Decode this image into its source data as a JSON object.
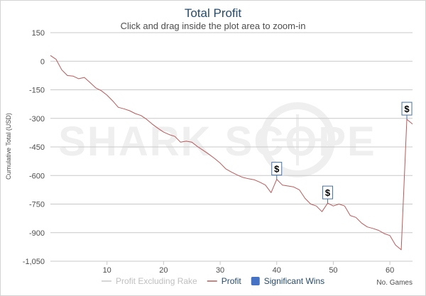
{
  "chart_data": {
    "type": "line",
    "title": "Total Profit",
    "subtitle": "Click and drag inside the plot area to zoom-in",
    "xlabel": "No. Games",
    "ylabel": "Cumulative Total (USD)",
    "watermark": "SHARK SCOPE",
    "xlim": [
      0,
      64
    ],
    "ylim": [
      -1050,
      150
    ],
    "xticks": [
      10,
      20,
      30,
      40,
      50,
      60
    ],
    "yticks": [
      150,
      0,
      -150,
      -300,
      -450,
      -600,
      -750,
      -900,
      -1050
    ],
    "ytick_labels": [
      "150",
      "0",
      "-150",
      "-300",
      "-450",
      "-600",
      "-750",
      "-900",
      "-1,050"
    ],
    "series": [
      {
        "name": "Profit",
        "color": "#b85a5a",
        "x": [
          0,
          1,
          2,
          3,
          4,
          5,
          6,
          7,
          8,
          9,
          10,
          11,
          12,
          13,
          14,
          15,
          16,
          17,
          18,
          19,
          20,
          21,
          22,
          23,
          24,
          25,
          26,
          27,
          28,
          29,
          30,
          31,
          32,
          33,
          34,
          35,
          36,
          37,
          38,
          39,
          40,
          41,
          42,
          43,
          44,
          45,
          46,
          47,
          48,
          49,
          50,
          51,
          52,
          53,
          54,
          55,
          56,
          57,
          58,
          59,
          60,
          61,
          62,
          63,
          64
        ],
        "y": [
          30,
          10,
          -45,
          -75,
          -78,
          -92,
          -85,
          -112,
          -140,
          -155,
          -178,
          -208,
          -242,
          -250,
          -260,
          -275,
          -285,
          -305,
          -330,
          -352,
          -372,
          -385,
          -395,
          -425,
          -420,
          -425,
          -448,
          -468,
          -488,
          -510,
          -535,
          -565,
          -582,
          -597,
          -610,
          -617,
          -622,
          -635,
          -650,
          -690,
          -620,
          -650,
          -655,
          -660,
          -675,
          -720,
          -750,
          -760,
          -790,
          -745,
          -760,
          -750,
          -760,
          -810,
          -820,
          -850,
          -870,
          -878,
          -888,
          -905,
          -915,
          -965,
          -990,
          -305,
          -330
        ]
      }
    ],
    "significant_wins": [
      {
        "x": 40,
        "y": -620,
        "label": "$"
      },
      {
        "x": 49,
        "y": -745,
        "label": "$"
      },
      {
        "x": 63,
        "y": -305,
        "label": "$"
      }
    ],
    "legend": {
      "position": "bottom-center",
      "items": [
        {
          "name": "Profit Excluding Rake",
          "color": "#c8c8c8",
          "text_color": "#c0c0c0",
          "marker": "line"
        },
        {
          "name": "Profit",
          "color": "#b85a5a",
          "text_color": "#274b6d",
          "marker": "line"
        },
        {
          "name": "Significant Wins",
          "color": "#4572c4",
          "text_color": "#274b6d",
          "marker": "square"
        }
      ]
    },
    "colors": {
      "grid": "#c8c8c8",
      "flag_border": "#4572a7",
      "title": "#274b6d"
    }
  }
}
